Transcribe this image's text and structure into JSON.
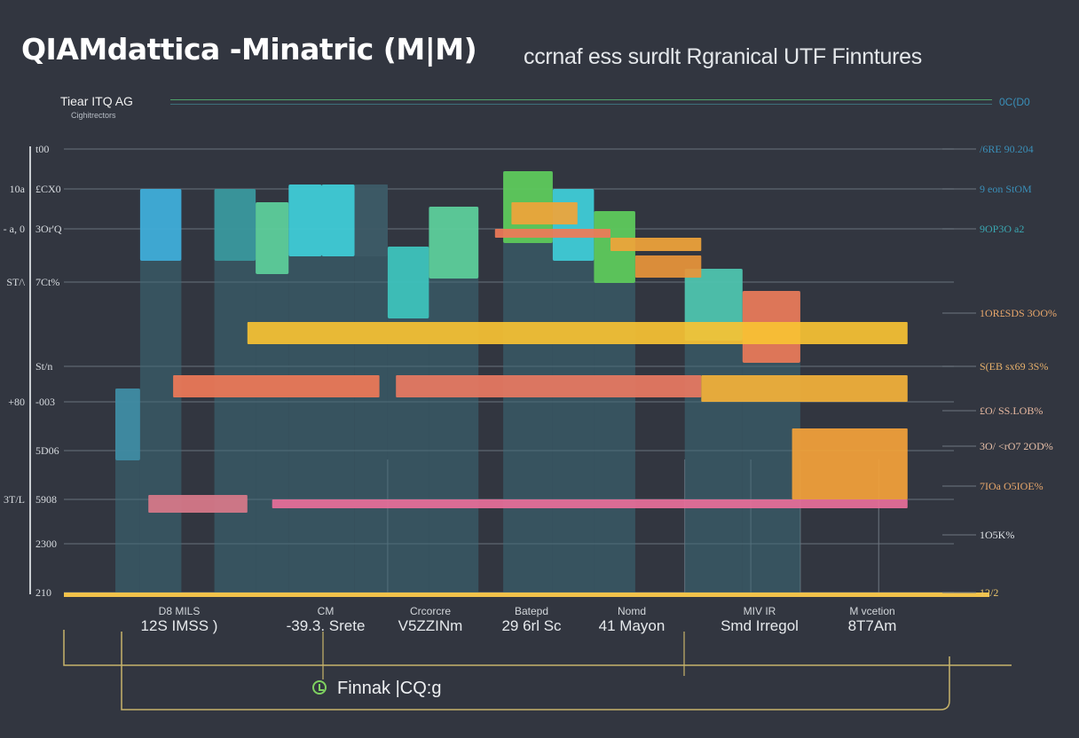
{
  "chart_data": {
    "type": "bar",
    "title": "QIAMdattica -Minatric (M|M)",
    "subtitle": "ccrnaf ess surdlt Rgranical UTF Finntures",
    "legend": {
      "title": "Tiear ITQ AG",
      "subtitle": "Cighitrectors",
      "right_label": "0C(D0",
      "placement": "top-left"
    },
    "ylim": [
      0,
      100
    ],
    "y_ticks": [
      {
        "value": 100,
        "outer": "",
        "inner": "t00"
      },
      {
        "value": 91,
        "outer": "10a",
        "inner": "£CX0"
      },
      {
        "value": 82,
        "outer": "- a, 0",
        "inner": "3Or'Q"
      },
      {
        "value": 70,
        "outer": "ST/\\",
        "inner": "7Ct%"
      },
      {
        "value": 51,
        "outer": "",
        "inner": "St/n"
      },
      {
        "value": 43,
        "outer": "+80",
        "inner": "-003"
      },
      {
        "value": 32,
        "outer": "",
        "inner": "5D06"
      },
      {
        "value": 21,
        "outer": "3T/L",
        "inner": "5908"
      },
      {
        "value": 11,
        "outer": "",
        "inner": "2300"
      },
      {
        "value": 0,
        "outer": "",
        "inner": "210"
      }
    ],
    "right_labels": [
      {
        "value": 100,
        "text": "/6RE 90.204",
        "color": "#3a8fb8"
      },
      {
        "value": 91,
        "text": "9 eon StOM",
        "color": "#3a8fb8"
      },
      {
        "value": 82,
        "text": "9OP3O a2",
        "color": "#3aa6b0"
      },
      {
        "value": 63,
        "text": "1OR£SDS 3OO%",
        "color": "#e8a76b"
      },
      {
        "value": 51,
        "text": "S(EB sx69 3S%",
        "color": "#e8b16b"
      },
      {
        "value": 41,
        "text": "£O/ SS.LOB%",
        "color": "#e8b9a0"
      },
      {
        "value": 33,
        "text": "3O/ <rO7 2OD%",
        "color": "#e8c0a8"
      },
      {
        "value": 24,
        "text": "7IOa O5IOE%",
        "color": "#e8a76b"
      },
      {
        "value": 13,
        "text": "1O5K%",
        "color": "#dfe3e6"
      },
      {
        "value": 0,
        "text": "12/2",
        "color": "#e9c46a"
      }
    ],
    "categories": [
      {
        "key": "D8 MILS",
        "value": "12S IMSS )"
      },
      {
        "key": "CM",
        "value": "-39.3. Srete"
      },
      {
        "key": "Crcorcre",
        "value": "V5ZZINm"
      },
      {
        "key": "Batepd",
        "value": "29 6rl Sc"
      },
      {
        "key": "Nomd",
        "value": "41 Mayon"
      },
      {
        "key": "MIV IR",
        "value": "Smd Irregol"
      },
      {
        "key": "M vcetion",
        "value": "8T7Am"
      }
    ],
    "columns": [
      {
        "name": "col-1",
        "x": [
          0.0,
          0.03
        ],
        "value": 46,
        "color": "#3f8ea6"
      },
      {
        "name": "col-2",
        "x": [
          0.03,
          0.08
        ],
        "value": 91,
        "color": "#3fb0de"
      },
      {
        "name": "col-3",
        "x": [
          0.12,
          0.17
        ],
        "value": 91,
        "color": "#3a9aa0"
      },
      {
        "name": "col-4",
        "x": [
          0.17,
          0.21
        ],
        "value": 88,
        "color": "#5ed39c"
      },
      {
        "name": "col-5",
        "x": [
          0.21,
          0.25
        ],
        "value": 92,
        "color": "#3fd0dc"
      },
      {
        "name": "col-6",
        "x": [
          0.25,
          0.29
        ],
        "value": 92,
        "color": "#3fd0dc"
      },
      {
        "name": "col-7",
        "x": [
          0.29,
          0.33
        ],
        "value": 92,
        "color": "#3d5a66"
      },
      {
        "name": "col-8",
        "x": [
          0.33,
          0.38
        ],
        "value": 78,
        "color": "#3ec8c0"
      },
      {
        "name": "col-9",
        "x": [
          0.38,
          0.44
        ],
        "value": 87,
        "color": "#5ed39c"
      },
      {
        "name": "col-10",
        "x": [
          0.47,
          0.53
        ],
        "value": 95,
        "color": "#5fce5a"
      },
      {
        "name": "col-11",
        "x": [
          0.53,
          0.58
        ],
        "value": 91,
        "color": "#3fd0dc"
      },
      {
        "name": "col-12",
        "x": [
          0.58,
          0.63
        ],
        "value": 86,
        "color": "#5fce5a"
      },
      {
        "name": "col-13",
        "x": [
          0.69,
          0.76
        ],
        "value": 73,
        "color": "#4fc8b0"
      },
      {
        "name": "col-14",
        "x": [
          0.76,
          0.83
        ],
        "value": 68,
        "color": "#ef7a58"
      }
    ],
    "overlays": [
      {
        "name": "orange-top",
        "x": [
          0.48,
          0.56
        ],
        "value": 88,
        "height": 5,
        "color": "#f0a43a"
      },
      {
        "name": "salmon-top",
        "x": [
          0.46,
          0.6
        ],
        "value": 82,
        "height": 2,
        "color": "#ef7a58"
      },
      {
        "name": "orange-mid",
        "x": [
          0.6,
          0.71
        ],
        "value": 80,
        "height": 3,
        "color": "#f0a43a"
      },
      {
        "name": "orange-low",
        "x": [
          0.63,
          0.71
        ],
        "value": 76,
        "height": 5,
        "color": "#e8953a"
      },
      {
        "name": "yellow-band",
        "x": [
          0.16,
          0.96
        ],
        "value": 61,
        "height": 5,
        "color": "#f7c233"
      },
      {
        "name": "mixed-band-1",
        "x": [
          0.07,
          0.32
        ],
        "value": 49,
        "height": 5,
        "color": "#ef7a58"
      },
      {
        "name": "mixed-band-2",
        "x": [
          0.34,
          0.71
        ],
        "value": 49,
        "height": 5,
        "color": "#e97a62"
      },
      {
        "name": "mixed-band-3",
        "x": [
          0.71,
          0.96
        ],
        "value": 49,
        "height": 6,
        "color": "#f4b23a"
      },
      {
        "name": "orange-block",
        "x": [
          0.82,
          0.96
        ],
        "value": 37,
        "height": 16,
        "color": "#f4a23a"
      },
      {
        "name": "pink-short",
        "x": [
          0.04,
          0.16
        ],
        "value": 22,
        "height": 4,
        "color": "#d97a8a"
      },
      {
        "name": "pink-long",
        "x": [
          0.19,
          0.96
        ],
        "value": 21,
        "height": 2,
        "color": "#e86f9a"
      }
    ]
  },
  "footer": {
    "label": "Finnak |CQ:g",
    "icon": "clock-icon"
  }
}
